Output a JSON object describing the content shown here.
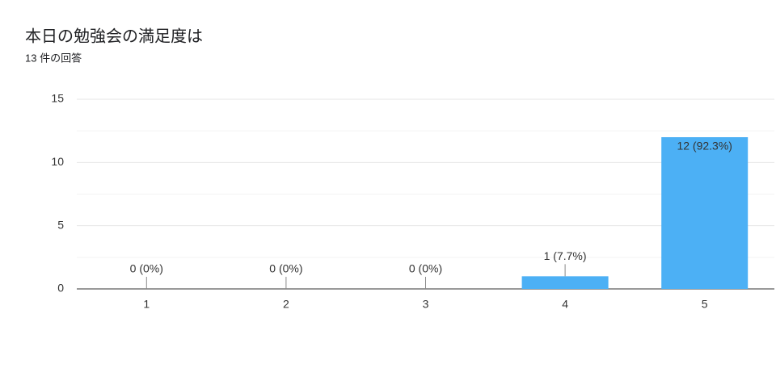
{
  "chart_data": {
    "type": "bar",
    "title": "本日の勉強会の満足度は",
    "subtitle": "13 件の回答",
    "categories": [
      "1",
      "2",
      "3",
      "4",
      "5"
    ],
    "values": [
      0,
      0,
      0,
      1,
      12
    ],
    "value_labels": [
      "0 (0%)",
      "0 (0%)",
      "0 (0%)",
      "1 (7.7%)",
      "12 (92.3%)"
    ],
    "color": "#4cb0f5",
    "ylim": [
      0,
      15
    ],
    "yticks": [
      0,
      5,
      10,
      15
    ],
    "minor_yticks": [
      2.5,
      7.5,
      12.5
    ],
    "grid": true
  }
}
